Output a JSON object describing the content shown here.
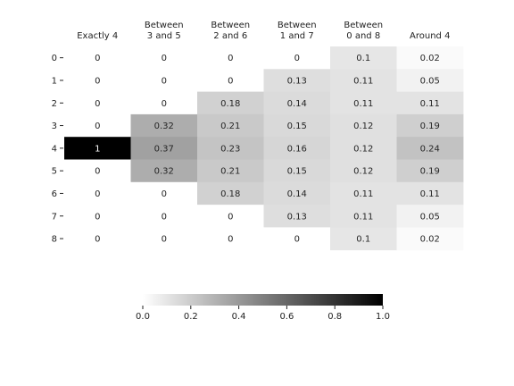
{
  "chart_data": {
    "type": "heatmap",
    "columns": [
      [
        "Exactly 4"
      ],
      [
        "Between",
        "3 and 5"
      ],
      [
        "Between",
        "2 and 6"
      ],
      [
        "Between",
        "1 and 7"
      ],
      [
        "Between",
        "0 and 8"
      ],
      [
        "Around 4"
      ]
    ],
    "rows": [
      "0",
      "1",
      "2",
      "3",
      "4",
      "5",
      "6",
      "7",
      "8"
    ],
    "values": [
      [
        "0",
        "0",
        "0",
        "0",
        "0.1",
        "0.02"
      ],
      [
        "0",
        "0",
        "0",
        "0.13",
        "0.11",
        "0.05"
      ],
      [
        "0",
        "0",
        "0.18",
        "0.14",
        "0.11",
        "0.11"
      ],
      [
        "0",
        "0.32",
        "0.21",
        "0.15",
        "0.12",
        "0.19"
      ],
      [
        "1",
        "0.37",
        "0.23",
        "0.16",
        "0.12",
        "0.24"
      ],
      [
        "0",
        "0.32",
        "0.21",
        "0.15",
        "0.12",
        "0.19"
      ],
      [
        "0",
        "0",
        "0.18",
        "0.14",
        "0.11",
        "0.11"
      ],
      [
        "0",
        "0",
        "0",
        "0.13",
        "0.11",
        "0.05"
      ],
      [
        "0",
        "0",
        "0",
        "0",
        "0.1",
        "0.02"
      ]
    ],
    "colorbar": {
      "ticks": [
        "0.0",
        "0.2",
        "0.4",
        "0.6",
        "0.8",
        "1.0"
      ],
      "range": [
        0,
        1
      ],
      "colormap": "white-to-black"
    }
  }
}
